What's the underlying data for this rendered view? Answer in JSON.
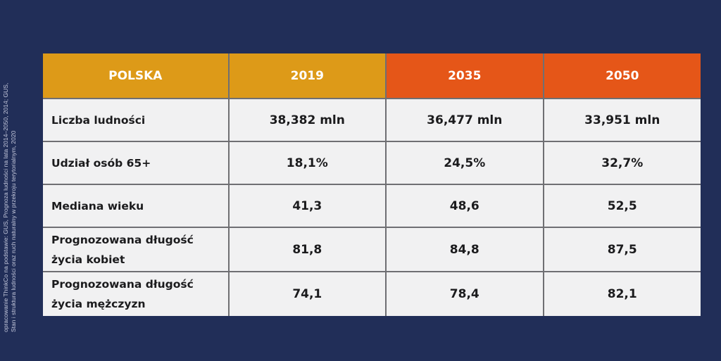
{
  "source_note": {
    "line1": "opracowanie ThinkCo na podstawie: GUS, Prognoza ludności na lata 2014–2050, 2014; GUS,",
    "line2": "Stan i struktura ludności oraz ruch naturalny w przekroju terytorialnym, 2020"
  },
  "colors": {
    "background": "#212e58",
    "header_2019": "#dd9a18",
    "header_2035_2050": "#e55618",
    "cell_background": "#f1f1f2"
  },
  "table": {
    "headers": [
      "POLSKA",
      "2019",
      "2035",
      "2050"
    ],
    "rows": [
      {
        "label": "Liczba ludności",
        "values": [
          "38,382 mln",
          "36,477 mln",
          "33,951 mln"
        ]
      },
      {
        "label": "Udział osób 65+",
        "values": [
          "18,1%",
          "24,5%",
          "32,7%"
        ]
      },
      {
        "label": "Mediana wieku",
        "values": [
          "41,3",
          "48,6",
          "52,5"
        ]
      },
      {
        "label": "Prognozowana długość życia kobiet",
        "values": [
          "81,8",
          "84,8",
          "87,5"
        ]
      },
      {
        "label": "Prognozowana długość życia mężczyzn",
        "values": [
          "74,1",
          "78,4",
          "82,1"
        ]
      }
    ]
  }
}
